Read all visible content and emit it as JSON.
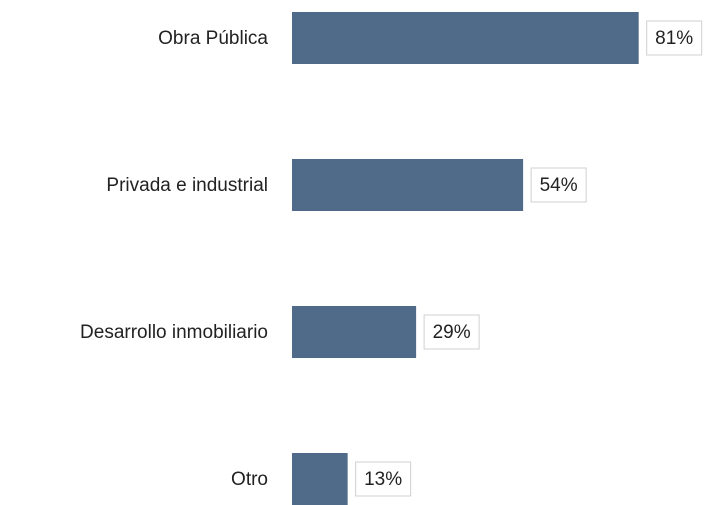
{
  "chart_data": {
    "type": "bar",
    "orientation": "horizontal",
    "categories": [
      "Obra Pública",
      "Privada e industrial",
      "Desarrollo inmobiliario",
      "Otro"
    ],
    "values": [
      81,
      54,
      29,
      13
    ],
    "value_labels": [
      "81%",
      "54%",
      "29%",
      "13%"
    ],
    "color": "#506a89"
  }
}
